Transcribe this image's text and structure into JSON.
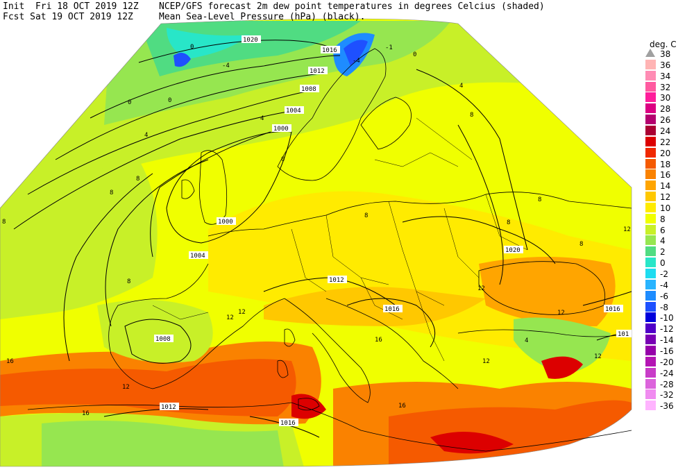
{
  "header": {
    "init_label": "Init",
    "init_value": "Fri 18 OCT 2019 12Z",
    "fcst_label": "Fcst",
    "fcst_value": "Sat 19 OCT 2019 12Z",
    "title_line1": "NCEP/GFS forecast 2m dew point temperatures in degrees Celcius (shaded)",
    "title_line2": "Mean Sea-Level Pressure (hPa) (black)."
  },
  "legend": {
    "title": "deg. C",
    "entries": [
      {
        "label": "38",
        "color": "#b0b0b0"
      },
      {
        "label": "36",
        "color": "#ffb4b4"
      },
      {
        "label": "34",
        "color": "#ff8cb4"
      },
      {
        "label": "32",
        "color": "#ff5aa0"
      },
      {
        "label": "30",
        "color": "#ff1e9b"
      },
      {
        "label": "28",
        "color": "#dc0082"
      },
      {
        "label": "26",
        "color": "#b4006e"
      },
      {
        "label": "24",
        "color": "#aa0032"
      },
      {
        "label": "22",
        "color": "#dc0000"
      },
      {
        "label": "20",
        "color": "#f02800"
      },
      {
        "label": "18",
        "color": "#f55a00"
      },
      {
        "label": "16",
        "color": "#fa8200"
      },
      {
        "label": "14",
        "color": "#ffa500"
      },
      {
        "label": "12",
        "color": "#ffc800"
      },
      {
        "label": "10",
        "color": "#ffeb00"
      },
      {
        "label": "8",
        "color": "#f0ff00"
      },
      {
        "label": "6",
        "color": "#c8f028"
      },
      {
        "label": "4",
        "color": "#96e650"
      },
      {
        "label": "2",
        "color": "#50dc82"
      },
      {
        "label": "0",
        "color": "#28e6c8"
      },
      {
        "label": "-2",
        "color": "#1edcf0"
      },
      {
        "label": "-4",
        "color": "#28b4ff"
      },
      {
        "label": "-6",
        "color": "#1e8cff"
      },
      {
        "label": "-8",
        "color": "#1e50ff"
      },
      {
        "label": "-10",
        "color": "#0000dc"
      },
      {
        "label": "-12",
        "color": "#5000c8"
      },
      {
        "label": "-14",
        "color": "#7800b4"
      },
      {
        "label": "-16",
        "color": "#9600aa"
      },
      {
        "label": "-20",
        "color": "#b414b4"
      },
      {
        "label": "-24",
        "color": "#c83cc8"
      },
      {
        "label": "-28",
        "color": "#dc64dc"
      },
      {
        "label": "-32",
        "color": "#f08cf0"
      },
      {
        "label": "-36",
        "color": "#ffb4ff"
      }
    ]
  },
  "isobar_labels": {
    "l1020_north": "1020",
    "l1016_norway": "1016",
    "l1012_north": "1012",
    "l1008_north": "1008",
    "l1004_north": "1004",
    "l1000_north": "1000",
    "l1000_uk": "1000",
    "l1004_france": "1004",
    "l1012_alps": "1012",
    "l1016_balkans": "1016",
    "l1020_russia": "1020",
    "l1016_east": "1016",
    "l1016_edge": "101",
    "l1008_iberia": "1008",
    "l1012_africa": "1012",
    "l1016_africa": "1016"
  },
  "dewpoint_labels": {
    "d_n1": "0",
    "d_n2": "-4",
    "d_n3": "0",
    "d_n4": "-4",
    "d_n5": "-1",
    "d_n6": "0",
    "d_a1": "0",
    "d_a2": "0",
    "d_a3": "4",
    "d_a4": "4",
    "d_a5": "4",
    "d_b1": "8",
    "d_b2": "8",
    "d_b3": "8",
    "d_b4": "8",
    "d_b5": "8",
    "d_b6": "8",
    "d_c1": "8",
    "d_c2": "8",
    "d_c3": "8",
    "d_c4": "12",
    "d_c5": "12",
    "d_e1": "12",
    "d_e2": "12",
    "d_e3": "16",
    "d_e4": "16",
    "d_e5": "12",
    "d_f1": "16",
    "d_f2": "12",
    "d_f3": "4",
    "d_f4": "12",
    "d_f5": "12",
    "d_f6": "16"
  }
}
